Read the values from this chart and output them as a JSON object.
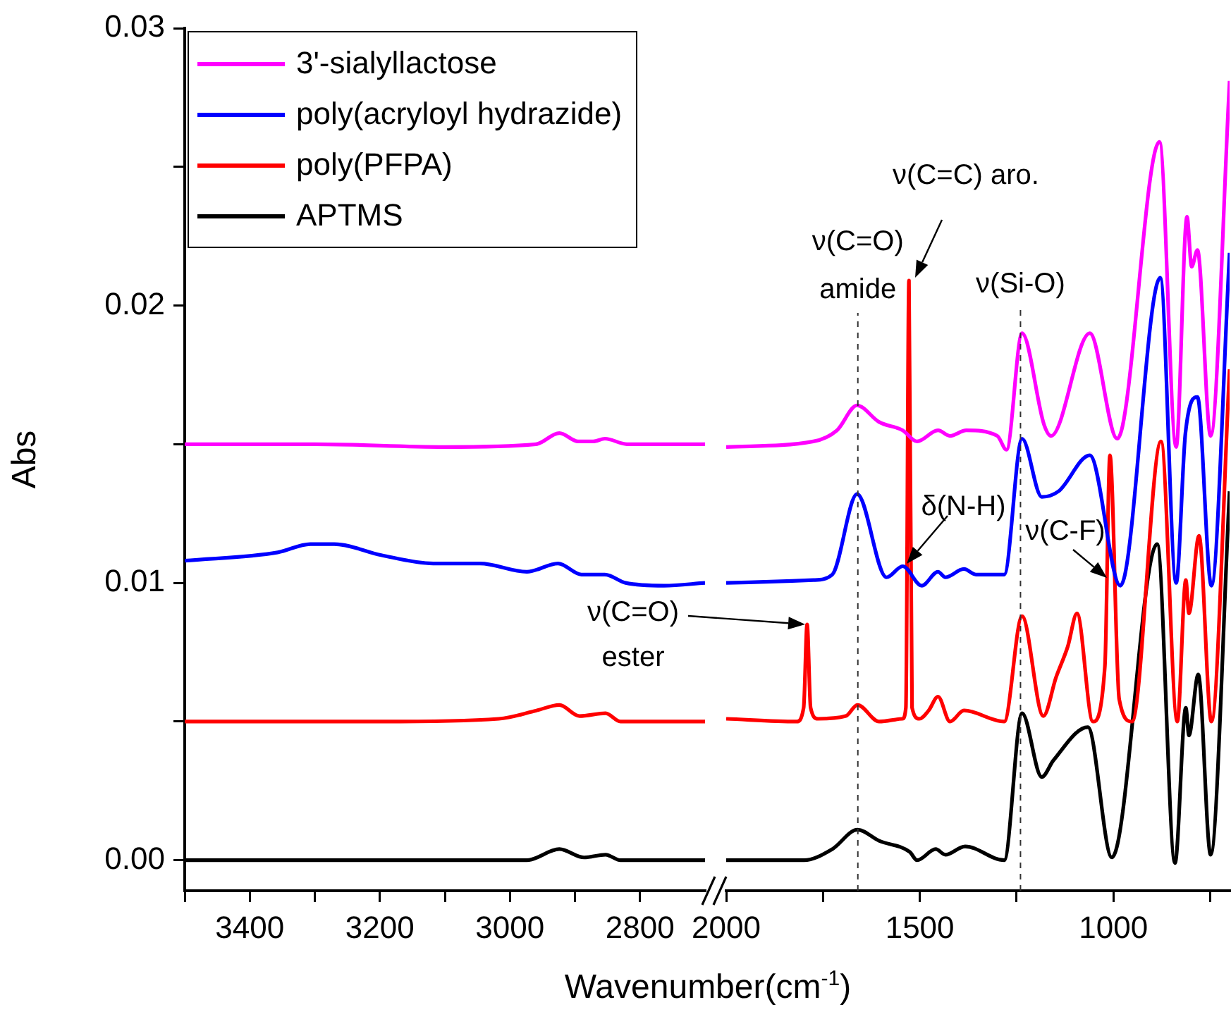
{
  "chart_data": [
    {
      "type": "line",
      "ylabel": "Abs",
      "xlabel": "Wavenumber(cm$^{-1}$)",
      "legend": "top left",
      "xlim": [
        3500,
        2700
      ],
      "ylim": [
        -0.0011,
        0.03
      ],
      "xticks": [
        {
          "value": 3500,
          "label": null
        },
        3400,
        {
          "value": 3300,
          "label": null
        },
        3200,
        {
          "value": 3100,
          "label": null
        },
        3000,
        {
          "value": 2900,
          "label": null
        },
        2800
      ],
      "yticks": [
        {
          "value": 0,
          "label": "0.00"
        },
        {
          "value": 0.005,
          "label": null
        },
        {
          "value": 0.01,
          "label": "0.01"
        },
        {
          "value": 0.015,
          "label": null
        },
        {
          "value": 0.02,
          "label": "0.02"
        },
        {
          "value": 0.025,
          "label": null
        },
        {
          "value": 0.03,
          "label": "0.03"
        }
      ],
      "series": [
        {
          "name": "3'-sialyllactose",
          "color": "#ff00ff",
          "x": [
            3500,
            3300,
            3100,
            2960,
            2924,
            2895,
            2872,
            2854,
            2820,
            2700
          ],
          "values": [
            0.015,
            0.015,
            0.0149,
            0.015,
            0.0154,
            0.0151,
            0.0151,
            0.0152,
            0.015,
            0.015
          ]
        },
        {
          "name": "poly(acryloyl hydrazide)",
          "color": "#0000ff",
          "x": [
            3500,
            3357,
            3307,
            3270,
            3198,
            3118,
            3046,
            2974,
            2926,
            2890,
            2854,
            2822,
            2763,
            2700
          ],
          "values": [
            0.0108,
            0.0111,
            0.0114,
            0.0114,
            0.011,
            0.0107,
            0.0107,
            0.0104,
            0.0107,
            0.0103,
            0.0103,
            0.01,
            0.0099,
            0.01
          ]
        },
        {
          "name": "poly(PFPA)",
          "color": "#ff0000",
          "x": [
            3500,
            3198,
            3017,
            2959,
            2924,
            2893,
            2853,
            2830,
            2700
          ],
          "values": [
            0.005,
            0.005,
            0.0051,
            0.0054,
            0.0056,
            0.0052,
            0.0053,
            0.005,
            0.005
          ]
        },
        {
          "name": "APTMS",
          "color": "#000000",
          "x": [
            3500,
            2974,
            2924,
            2886,
            2853,
            2830,
            2700
          ],
          "values": [
            0,
            0,
            0.0004,
            0.0001,
            0.0002,
            0,
            0
          ]
        }
      ]
    },
    {
      "type": "line",
      "tick_labels": "x",
      "xlim": [
        2000,
        700
      ],
      "ylim": [
        -0.0011,
        0.03
      ],
      "xticks": [
        2000,
        {
          "value": 1750,
          "label": null
        },
        1500,
        {
          "value": 1250,
          "label": null
        },
        1000,
        {
          "value": 750,
          "label": null
        }
      ],
      "ref_lines": [
        {
          "axis": "x",
          "value": 1660,
          "label": "ν(C=O)\namide",
          "line_style": "dashed"
        },
        {
          "axis": "x",
          "value": 1240,
          "label": "ν(Si-O)",
          "line_style": "dashed"
        }
      ],
      "annotations": [
        "ν(C=C) aro.",
        {
          "text": "δ(N-H)",
          "x": 1533,
          "y": 0.0107
        },
        {
          "text": "ν(C-F)",
          "x": 1015,
          "y": 0.0102
        },
        "ν(C=O)\nester"
      ],
      "series": [
        {
          "color": "#ff00ff",
          "x": [
            2000,
            1775,
            1714,
            1662,
            1605,
            1544,
            1507,
            1453,
            1422,
            1380,
            1300,
            1276,
            1236,
            1179,
            1161,
            1061,
            990,
            881,
            838,
            810,
            798,
            783,
            749,
            700
          ],
          "values": [
            0.0149,
            0.0151,
            0.0155,
            0.0164,
            0.0158,
            0.0155,
            0.0151,
            0.0155,
            0.0153,
            0.0155,
            0.0153,
            0.0148,
            0.019,
            0.0157,
            0.0153,
            0.019,
            0.0152,
            0.0259,
            0.0149,
            0.0232,
            0.0214,
            0.022,
            0.0153,
            0.0281
          ]
        },
        {
          "color": "#0000ff",
          "x": [
            2000,
            1775,
            1726,
            1662,
            1586,
            1544,
            1495,
            1453,
            1434,
            1386,
            1355,
            1282,
            1236,
            1185,
            1142,
            1061,
            982,
            879,
            838,
            814,
            783,
            747,
            700
          ],
          "values": [
            0.01,
            0.0101,
            0.0103,
            0.0132,
            0.0102,
            0.0106,
            0.0099,
            0.0104,
            0.0102,
            0.0105,
            0.0103,
            0.0103,
            0.0152,
            0.0131,
            0.0133,
            0.0146,
            0.0099,
            0.021,
            0.01,
            0.0154,
            0.0167,
            0.0099,
            0.0219
          ]
        },
        {
          "color": "#ff0000",
          "x": [
            2000,
            1818,
            1800,
            1791,
            1782,
            1763,
            1691,
            1661,
            1605,
            1545,
            1536,
            1528,
            1520,
            1501,
            1477,
            1453,
            1422,
            1386,
            1282,
            1236,
            1181,
            1148,
            1118,
            1094,
            1053,
            1022,
            1009,
            985,
            952,
            877,
            835,
            813,
            805,
            779,
            747,
            700
          ],
          "values": [
            0.0051,
            0.005,
            0.0055,
            0.0085,
            0.0055,
            0.0051,
            0.0052,
            0.0056,
            0.005,
            0.0051,
            0.0055,
            0.0209,
            0.0055,
            0.0051,
            0.0054,
            0.0059,
            0.005,
            0.0054,
            0.005,
            0.0088,
            0.0052,
            0.0066,
            0.0077,
            0.0089,
            0.005,
            0.007,
            0.0146,
            0.0058,
            0.005,
            0.0151,
            0.005,
            0.0101,
            0.0089,
            0.0117,
            0.005,
            0.0177
          ]
        },
        {
          "color": "#000000",
          "x": [
            2000,
            1799,
            1726,
            1661,
            1605,
            1526,
            1507,
            1459,
            1434,
            1383,
            1282,
            1236,
            1185,
            1155,
            1066,
            1004,
            887,
            841,
            813,
            805,
            781,
            749,
            700
          ],
          "values": [
            0,
            0,
            0.0004,
            0.0011,
            0.0007,
            0.0003,
            0,
            0.0004,
            0.0002,
            0.0005,
            0,
            0.0053,
            0.003,
            0.0036,
            0.0048,
            0.0001,
            0.0114,
            -0.0001,
            0.0055,
            0.0045,
            0.0067,
            0.0002,
            0.0133
          ]
        }
      ]
    }
  ]
}
